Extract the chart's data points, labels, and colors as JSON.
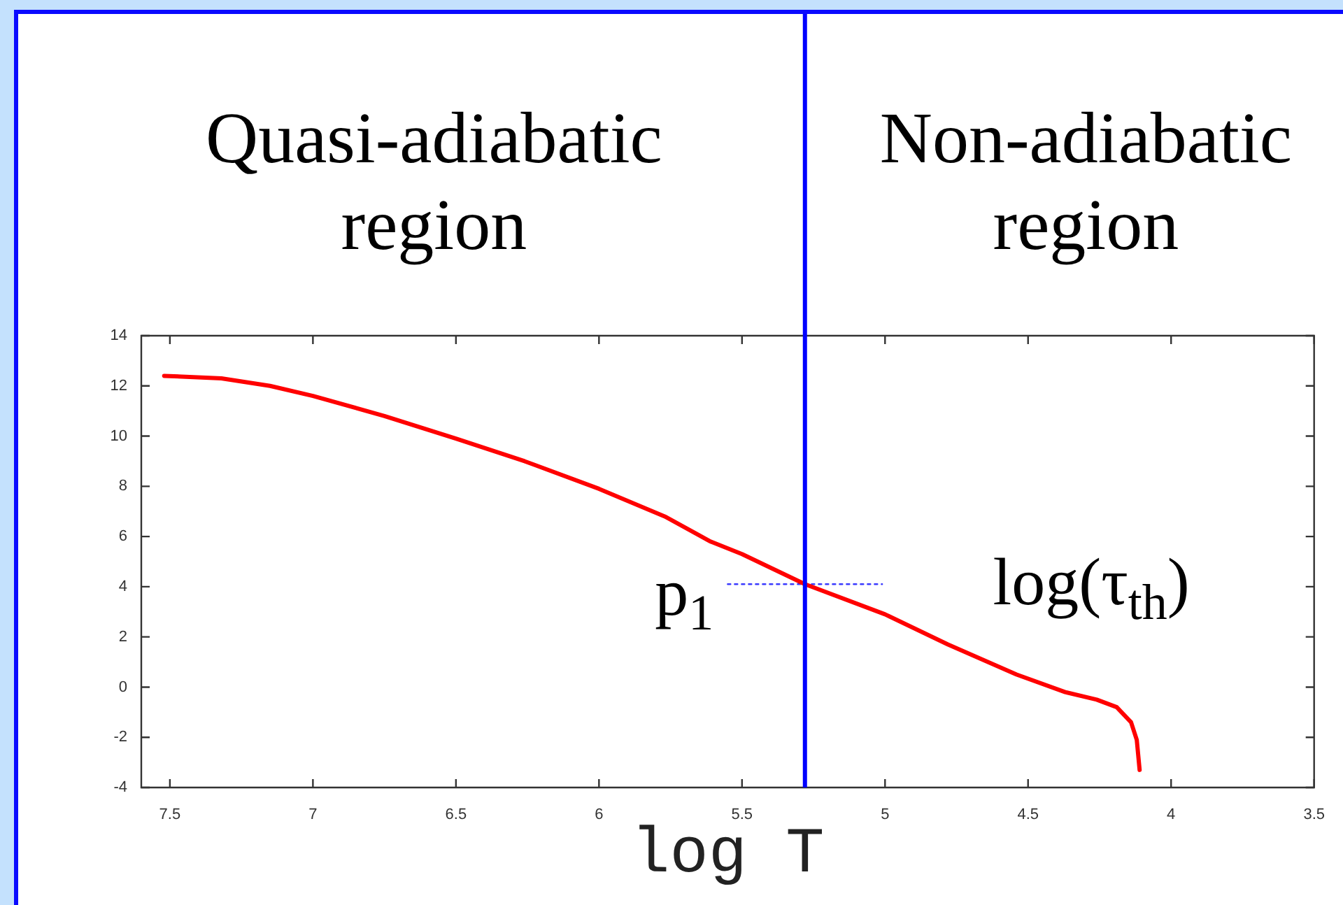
{
  "chart_data": {
    "type": "line",
    "xlabel": "log T",
    "annotations": [
      "Quasi-adiabatic region",
      "Non-adiabatic region",
      "log(τ$_{th}$)",
      {
        "text": "p$_{1}$",
        "x": 5.55,
        "y": 4.1
      }
    ],
    "x": [
      7.52,
      7.32,
      7.15,
      7.0,
      6.75,
      6.5,
      6.26,
      6.0,
      5.77,
      5.61,
      5.5,
      5.28,
      5.0,
      4.78,
      4.54,
      4.37,
      4.26,
      4.19,
      4.14,
      4.12,
      4.11
    ],
    "series": [
      {
        "color": "#ff0000",
        "values": [
          12.4,
          12.3,
          12.0,
          11.6,
          10.8,
          9.9,
          9.0,
          7.9,
          6.8,
          5.8,
          5.3,
          4.1,
          2.9,
          1.7,
          0.5,
          -0.2,
          -0.5,
          -0.8,
          -1.4,
          -2.1,
          -3.3
        ]
      },
      {
        "type": "line",
        "x": [
          5.55,
          5.01
        ],
        "values": [
          4.1,
          4.1
        ],
        "color": "#3a3aff",
        "line_style": "dotted"
      }
    ],
    "xlim": [
      7.6,
      3.5
    ],
    "xticks": [
      7.5,
      7,
      6.5,
      6,
      5.5,
      5,
      4.5,
      4,
      3.5
    ],
    "ylim": [
      -4,
      14
    ],
    "yticks": [
      -4,
      -2,
      0,
      2,
      4,
      6,
      8,
      10,
      12,
      14
    ],
    "ref_lines": [
      {
        "axis": "x",
        "value": 5.28,
        "color": "#0000ff"
      }
    ]
  }
}
